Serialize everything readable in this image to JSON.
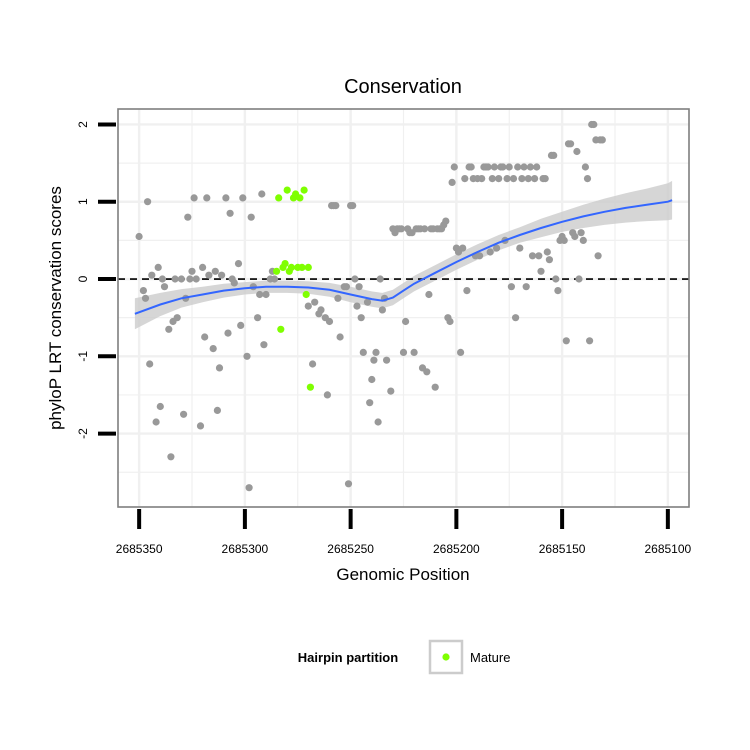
{
  "chart_data": {
    "type": "scatter",
    "title": "Conservation",
    "xlabel": "Genomic Position",
    "ylabel": "phyloP LRT conservation scores",
    "xlim": [
      2685360,
      2685090
    ],
    "ylim": [
      -2.95,
      2.2
    ],
    "x_reversed": true,
    "x_ticks": [
      2685350,
      2685300,
      2685250,
      2685200,
      2685150,
      2685100
    ],
    "y_ticks": [
      -2,
      -1,
      0,
      1,
      2
    ],
    "reference_line": {
      "y": 0,
      "style": "dashed",
      "color": "#000000"
    },
    "legend": {
      "title": "Hairpin partition",
      "position": "bottom",
      "entries": [
        {
          "label": "Mature",
          "color": "#7fff00"
        }
      ]
    },
    "colors": {
      "other": "#999999",
      "mature": "#7fff00",
      "smooth": "#3366ff",
      "band": "#cccccc",
      "grid": "#f0f0f0",
      "frame": "#7f7f7f"
    },
    "series": [
      {
        "name": "other",
        "points": [
          [
            2685350,
            0.55
          ],
          [
            2685348,
            -0.15
          ],
          [
            2685347,
            -0.25
          ],
          [
            2685346,
            1.0
          ],
          [
            2685345,
            -1.1
          ],
          [
            2685344,
            0.05
          ],
          [
            2685342,
            -1.85
          ],
          [
            2685341,
            0.15
          ],
          [
            2685340,
            -1.65
          ],
          [
            2685339,
            0.0
          ],
          [
            2685338,
            -0.1
          ],
          [
            2685336,
            -0.65
          ],
          [
            2685335,
            -2.3
          ],
          [
            2685334,
            -0.55
          ],
          [
            2685333,
            0.0
          ],
          [
            2685332,
            -0.5
          ],
          [
            2685330,
            0.0
          ],
          [
            2685329,
            -1.75
          ],
          [
            2685328,
            -0.25
          ],
          [
            2685327,
            0.8
          ],
          [
            2685326,
            0.0
          ],
          [
            2685325,
            0.1
          ],
          [
            2685324,
            1.05
          ],
          [
            2685323,
            0.0
          ],
          [
            2685321,
            -1.9
          ],
          [
            2685320,
            0.15
          ],
          [
            2685319,
            -0.75
          ],
          [
            2685318,
            1.05
          ],
          [
            2685317,
            0.05
          ],
          [
            2685315,
            -0.9
          ],
          [
            2685314,
            0.1
          ],
          [
            2685313,
            -1.7
          ],
          [
            2685312,
            -1.15
          ],
          [
            2685311,
            0.05
          ],
          [
            2685309,
            1.05
          ],
          [
            2685308,
            -0.7
          ],
          [
            2685307,
            0.85
          ],
          [
            2685306,
            0.0
          ],
          [
            2685305,
            -0.05
          ],
          [
            2685303,
            0.2
          ],
          [
            2685302,
            -0.6
          ],
          [
            2685301,
            1.05
          ],
          [
            2685299,
            -1.0
          ],
          [
            2685298,
            -2.7
          ],
          [
            2685297,
            0.8
          ],
          [
            2685296,
            -0.1
          ],
          [
            2685294,
            -0.5
          ],
          [
            2685293,
            -0.2
          ],
          [
            2685292,
            1.1
          ],
          [
            2685291,
            -0.85
          ],
          [
            2685290,
            -0.2
          ],
          [
            2685288,
            0.0
          ],
          [
            2685287,
            0.1
          ],
          [
            2685286,
            0.0
          ],
          [
            2685270,
            -0.35
          ],
          [
            2685268,
            -1.1
          ],
          [
            2685267,
            -0.3
          ],
          [
            2685265,
            -0.45
          ],
          [
            2685264,
            -0.4
          ],
          [
            2685262,
            -0.5
          ],
          [
            2685261,
            -1.5
          ],
          [
            2685260,
            -0.55
          ],
          [
            2685259,
            0.95
          ],
          [
            2685258,
            0.95
          ],
          [
            2685257,
            0.95
          ],
          [
            2685256,
            -0.25
          ],
          [
            2685255,
            -0.75
          ],
          [
            2685253,
            -0.1
          ],
          [
            2685252,
            -0.1
          ],
          [
            2685251,
            -2.65
          ],
          [
            2685250,
            0.95
          ],
          [
            2685249,
            0.95
          ],
          [
            2685248,
            0.0
          ],
          [
            2685247,
            -0.35
          ],
          [
            2685246,
            -0.1
          ],
          [
            2685245,
            -0.5
          ],
          [
            2685244,
            -0.95
          ],
          [
            2685242,
            -0.3
          ],
          [
            2685241,
            -1.6
          ],
          [
            2685240,
            -1.3
          ],
          [
            2685239,
            -1.05
          ],
          [
            2685238,
            -0.95
          ],
          [
            2685237,
            -1.85
          ],
          [
            2685236,
            0.0
          ],
          [
            2685235,
            -0.4
          ],
          [
            2685234,
            -0.25
          ],
          [
            2685233,
            -1.05
          ],
          [
            2685231,
            -1.45
          ],
          [
            2685230,
            0.65
          ],
          [
            2685229,
            0.6
          ],
          [
            2685228,
            0.65
          ],
          [
            2685227,
            0.65
          ],
          [
            2685226,
            0.65
          ],
          [
            2685225,
            -0.95
          ],
          [
            2685224,
            -0.55
          ],
          [
            2685223,
            0.65
          ],
          [
            2685222,
            0.6
          ],
          [
            2685221,
            0.6
          ],
          [
            2685220,
            -0.95
          ],
          [
            2685219,
            0.65
          ],
          [
            2685218,
            0.65
          ],
          [
            2685217,
            0.65
          ],
          [
            2685216,
            -1.15
          ],
          [
            2685215,
            0.65
          ],
          [
            2685214,
            -1.2
          ],
          [
            2685213,
            -0.2
          ],
          [
            2685212,
            0.65
          ],
          [
            2685211,
            0.65
          ],
          [
            2685210,
            -1.4
          ],
          [
            2685209,
            0.65
          ],
          [
            2685208,
            0.65
          ],
          [
            2685207,
            0.65
          ],
          [
            2685206,
            0.7
          ],
          [
            2685205,
            0.75
          ],
          [
            2685204,
            -0.5
          ],
          [
            2685203,
            -0.55
          ],
          [
            2685202,
            1.25
          ],
          [
            2685201,
            1.45
          ],
          [
            2685200,
            0.4
          ],
          [
            2685199,
            0.35
          ],
          [
            2685198,
            -0.95
          ],
          [
            2685197,
            0.4
          ],
          [
            2685196,
            1.3
          ],
          [
            2685195,
            -0.15
          ],
          [
            2685194,
            1.45
          ],
          [
            2685193,
            1.45
          ],
          [
            2685192,
            1.3
          ],
          [
            2685191,
            0.3
          ],
          [
            2685190,
            1.3
          ],
          [
            2685189,
            0.3
          ],
          [
            2685188,
            1.3
          ],
          [
            2685187,
            1.45
          ],
          [
            2685186,
            1.45
          ],
          [
            2685185,
            1.45
          ],
          [
            2685184,
            0.35
          ],
          [
            2685183,
            1.3
          ],
          [
            2685182,
            1.45
          ],
          [
            2685181,
            0.4
          ],
          [
            2685180,
            1.3
          ],
          [
            2685179,
            1.45
          ],
          [
            2685178,
            1.45
          ],
          [
            2685177,
            0.5
          ],
          [
            2685176,
            1.3
          ],
          [
            2685175,
            1.45
          ],
          [
            2685174,
            -0.1
          ],
          [
            2685173,
            1.3
          ],
          [
            2685172,
            -0.5
          ],
          [
            2685171,
            1.45
          ],
          [
            2685170,
            0.4
          ],
          [
            2685169,
            1.3
          ],
          [
            2685168,
            1.45
          ],
          [
            2685167,
            -0.1
          ],
          [
            2685166,
            1.3
          ],
          [
            2685165,
            1.45
          ],
          [
            2685164,
            0.3
          ],
          [
            2685163,
            1.3
          ],
          [
            2685162,
            1.45
          ],
          [
            2685161,
            0.3
          ],
          [
            2685160,
            0.1
          ],
          [
            2685159,
            1.3
          ],
          [
            2685158,
            1.3
          ],
          [
            2685157,
            0.35
          ],
          [
            2685156,
            0.25
          ],
          [
            2685155,
            1.6
          ],
          [
            2685154,
            1.6
          ],
          [
            2685153,
            0.0
          ],
          [
            2685152,
            -0.15
          ],
          [
            2685151,
            0.5
          ],
          [
            2685150,
            0.55
          ],
          [
            2685149,
            0.5
          ],
          [
            2685148,
            -0.8
          ],
          [
            2685147,
            1.75
          ],
          [
            2685146,
            1.75
          ],
          [
            2685145,
            0.6
          ],
          [
            2685144,
            0.55
          ],
          [
            2685143,
            1.65
          ],
          [
            2685142,
            0.0
          ],
          [
            2685141,
            0.6
          ],
          [
            2685140,
            0.5
          ],
          [
            2685139,
            1.45
          ],
          [
            2685138,
            1.3
          ],
          [
            2685137,
            -0.8
          ],
          [
            2685136,
            2.0
          ],
          [
            2685135,
            2.0
          ],
          [
            2685134,
            1.8
          ],
          [
            2685133,
            0.3
          ],
          [
            2685132,
            1.8
          ],
          [
            2685131,
            1.8
          ]
        ]
      },
      {
        "name": "Mature",
        "points": [
          [
            2685285,
            0.1
          ],
          [
            2685284,
            1.05
          ],
          [
            2685283,
            -0.65
          ],
          [
            2685282,
            0.15
          ],
          [
            2685281,
            0.2
          ],
          [
            2685280,
            1.15
          ],
          [
            2685279,
            0.1
          ],
          [
            2685278,
            0.15
          ],
          [
            2685277,
            1.05
          ],
          [
            2685276,
            1.1
          ],
          [
            2685275,
            0.15
          ],
          [
            2685274,
            1.05
          ],
          [
            2685273,
            0.15
          ],
          [
            2685272,
            1.15
          ],
          [
            2685271,
            -0.2
          ],
          [
            2685270,
            0.15
          ],
          [
            2685269,
            -1.4
          ]
        ]
      }
    ],
    "smooth": {
      "name": "loess",
      "x": [
        2685352,
        2685340,
        2685330,
        2685320,
        2685310,
        2685300,
        2685290,
        2685280,
        2685270,
        2685260,
        2685250,
        2685240,
        2685235,
        2685230,
        2685225,
        2685220,
        2685210,
        2685200,
        2685190,
        2685180,
        2685170,
        2685160,
        2685150,
        2685140,
        2685130,
        2685120,
        2685110,
        2685100,
        2685098
      ],
      "y": [
        -0.45,
        -0.33,
        -0.25,
        -0.2,
        -0.15,
        -0.12,
        -0.1,
        -0.1,
        -0.11,
        -0.14,
        -0.2,
        -0.26,
        -0.28,
        -0.24,
        -0.15,
        -0.06,
        0.08,
        0.22,
        0.35,
        0.47,
        0.57,
        0.66,
        0.74,
        0.81,
        0.87,
        0.92,
        0.96,
        1.0,
        1.02
      ],
      "band_halfwidth": [
        0.2,
        0.15,
        0.12,
        0.1,
        0.09,
        0.08,
        0.08,
        0.08,
        0.08,
        0.09,
        0.1,
        0.1,
        0.1,
        0.1,
        0.1,
        0.1,
        0.1,
        0.1,
        0.1,
        0.1,
        0.1,
        0.12,
        0.13,
        0.15,
        0.17,
        0.19,
        0.21,
        0.24,
        0.25
      ]
    }
  }
}
